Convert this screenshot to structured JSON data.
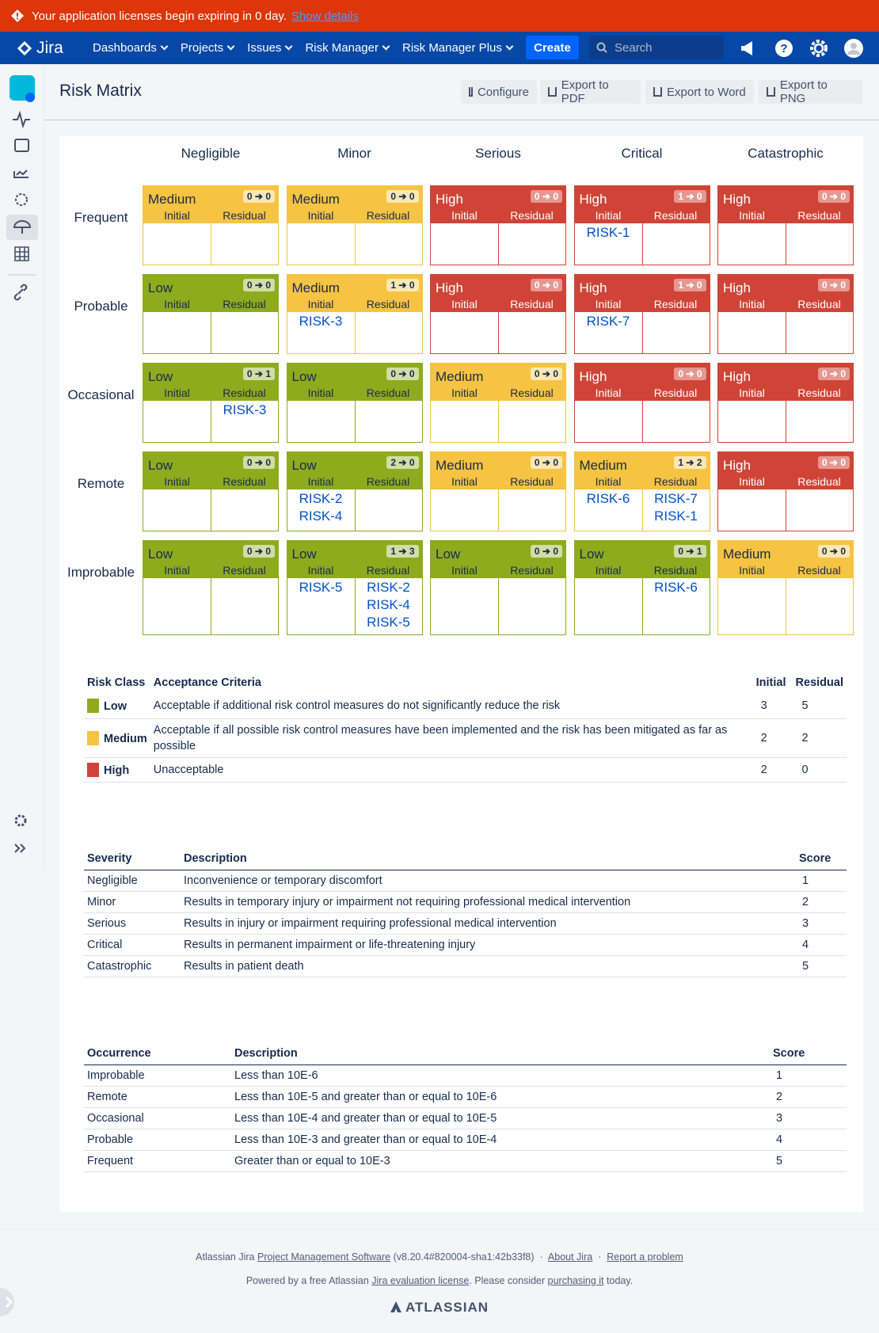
{
  "banner": {
    "text": "Your application licenses begin expiring in 0 day.",
    "link": "Show details"
  },
  "nav": {
    "logo": "Jira",
    "items": [
      "Dashboards",
      "Projects",
      "Issues",
      "Risk Manager",
      "Risk Manager Plus"
    ],
    "create": "Create",
    "search": "Search"
  },
  "header": {
    "title": "Risk Matrix",
    "buttons": [
      "Configure",
      "Export to PDF",
      "Export to Word",
      "Export to PNG"
    ]
  },
  "matrix": {
    "severities": [
      "Negligible",
      "Minor",
      "Serious",
      "Critical",
      "Catastrophic"
    ],
    "initial_label": "Initial",
    "residual_label": "Residual",
    "rows": [
      {
        "occurrence": "Frequent",
        "cells": [
          {
            "class": "Medium",
            "badge": "0 ➔ 0",
            "initial": [],
            "residual": []
          },
          {
            "class": "Medium",
            "badge": "0 ➔ 0",
            "initial": [],
            "residual": []
          },
          {
            "class": "High",
            "badge": "0 ➔ 0",
            "initial": [],
            "residual": []
          },
          {
            "class": "High",
            "badge": "1 ➔ 0",
            "initial": [
              "RISK-1"
            ],
            "residual": []
          },
          {
            "class": "High",
            "badge": "0 ➔ 0",
            "initial": [],
            "residual": []
          }
        ]
      },
      {
        "occurrence": "Probable",
        "cells": [
          {
            "class": "Low",
            "badge": "0 ➔ 0",
            "initial": [],
            "residual": []
          },
          {
            "class": "Medium",
            "badge": "1 ➔ 0",
            "initial": [
              "RISK-3"
            ],
            "residual": []
          },
          {
            "class": "High",
            "badge": "0 ➔ 0",
            "initial": [],
            "residual": []
          },
          {
            "class": "High",
            "badge": "1 ➔ 0",
            "initial": [
              "RISK-7"
            ],
            "residual": []
          },
          {
            "class": "High",
            "badge": "0 ➔ 0",
            "initial": [],
            "residual": []
          }
        ]
      },
      {
        "occurrence": "Occasional",
        "cells": [
          {
            "class": "Low",
            "badge": "0 ➔ 1",
            "initial": [],
            "residual": [
              "RISK-3"
            ]
          },
          {
            "class": "Low",
            "badge": "0 ➔ 0",
            "initial": [],
            "residual": []
          },
          {
            "class": "Medium",
            "badge": "0 ➔ 0",
            "initial": [],
            "residual": []
          },
          {
            "class": "High",
            "badge": "0 ➔ 0",
            "initial": [],
            "residual": []
          },
          {
            "class": "High",
            "badge": "0 ➔ 0",
            "initial": [],
            "residual": []
          }
        ]
      },
      {
        "occurrence": "Remote",
        "cells": [
          {
            "class": "Low",
            "badge": "0 ➔ 0",
            "initial": [],
            "residual": []
          },
          {
            "class": "Low",
            "badge": "2 ➔ 0",
            "initial": [
              "RISK-2",
              "RISK-4"
            ],
            "residual": []
          },
          {
            "class": "Medium",
            "badge": "0 ➔ 0",
            "initial": [],
            "residual": []
          },
          {
            "class": "Medium",
            "badge": "1 ➔ 2",
            "initial": [
              "RISK-6"
            ],
            "residual": [
              "RISK-7",
              "RISK-1"
            ]
          },
          {
            "class": "High",
            "badge": "0 ➔ 0",
            "initial": [],
            "residual": []
          }
        ]
      },
      {
        "occurrence": "Improbable",
        "cells": [
          {
            "class": "Low",
            "badge": "0 ➔ 0",
            "initial": [],
            "residual": []
          },
          {
            "class": "Low",
            "badge": "1 ➔ 3",
            "initial": [
              "RISK-5"
            ],
            "residual": [
              "RISK-2",
              "RISK-4",
              "RISK-5"
            ]
          },
          {
            "class": "Low",
            "badge": "0 ➔ 0",
            "initial": [],
            "residual": []
          },
          {
            "class": "Low",
            "badge": "0 ➔ 1",
            "initial": [],
            "residual": [
              "RISK-6"
            ]
          },
          {
            "class": "Medium",
            "badge": "0 ➔ 0",
            "initial": [],
            "residual": []
          }
        ]
      }
    ]
  },
  "legend": {
    "columns": [
      "Risk Class",
      "Acceptance Criteria",
      "Initial",
      "Residual"
    ],
    "rows": [
      {
        "class": "Low",
        "color": "#8eab1e",
        "text_color": "#172b4d",
        "criteria": "Acceptable if additional risk control measures do not significantly reduce the risk",
        "initial": "3",
        "residual": "5"
      },
      {
        "class": "Medium",
        "color": "#f6c342",
        "text_color": "#172b4d",
        "criteria": "Acceptable if all possible risk control measures have been implemented and the risk has been mitigated as far as possible",
        "initial": "2",
        "residual": "2"
      },
      {
        "class": "High",
        "color": "#d04437",
        "text_color": "#ffffff",
        "criteria": "Unacceptable",
        "initial": "2",
        "residual": "0"
      }
    ]
  },
  "severity_table": {
    "columns": [
      "Severity",
      "Description",
      "Score"
    ],
    "rows": [
      [
        "Negligible",
        "Inconvenience or temporary discomfort",
        "1"
      ],
      [
        "Minor",
        "Results in temporary injury or impairment not requiring professional medical intervention",
        "2"
      ],
      [
        "Serious",
        "Results in injury or impairment requiring professional medical intervention",
        "3"
      ],
      [
        "Critical",
        "Results in permanent impairment or life-threatening injury",
        "4"
      ],
      [
        "Catastrophic",
        "Results in patient death",
        "5"
      ]
    ]
  },
  "occurrence_table": {
    "columns": [
      "Occurrence",
      "Description",
      "Score"
    ],
    "rows": [
      [
        "Improbable",
        "Less than 10E-6",
        "1"
      ],
      [
        "Remote",
        "Less than 10E-5 and greater than or equal to 10E-6",
        "2"
      ],
      [
        "Occasional",
        "Less than 10E-4 and greater than or equal to 10E-5",
        "3"
      ],
      [
        "Probable",
        "Less than 10E-3 and greater than or equal to 10E-4",
        "4"
      ],
      [
        "Frequent",
        "Greater than or equal to 10E-3",
        "5"
      ]
    ]
  },
  "footer": {
    "line1": {
      "prefix": "Atlassian Jira",
      "link": "Project Management Software",
      "version": "(v8.20.4#820004-sha1:42b33f8)",
      "about": "About Jira",
      "report": "Report a problem"
    },
    "line2": {
      "prefix": "Powered by a free Atlassian",
      "link": "Jira evaluation license",
      "middle": ". Please consider",
      "link2": "purchasing it",
      "suffix": "today."
    },
    "logo": "ATLASSIAN"
  }
}
